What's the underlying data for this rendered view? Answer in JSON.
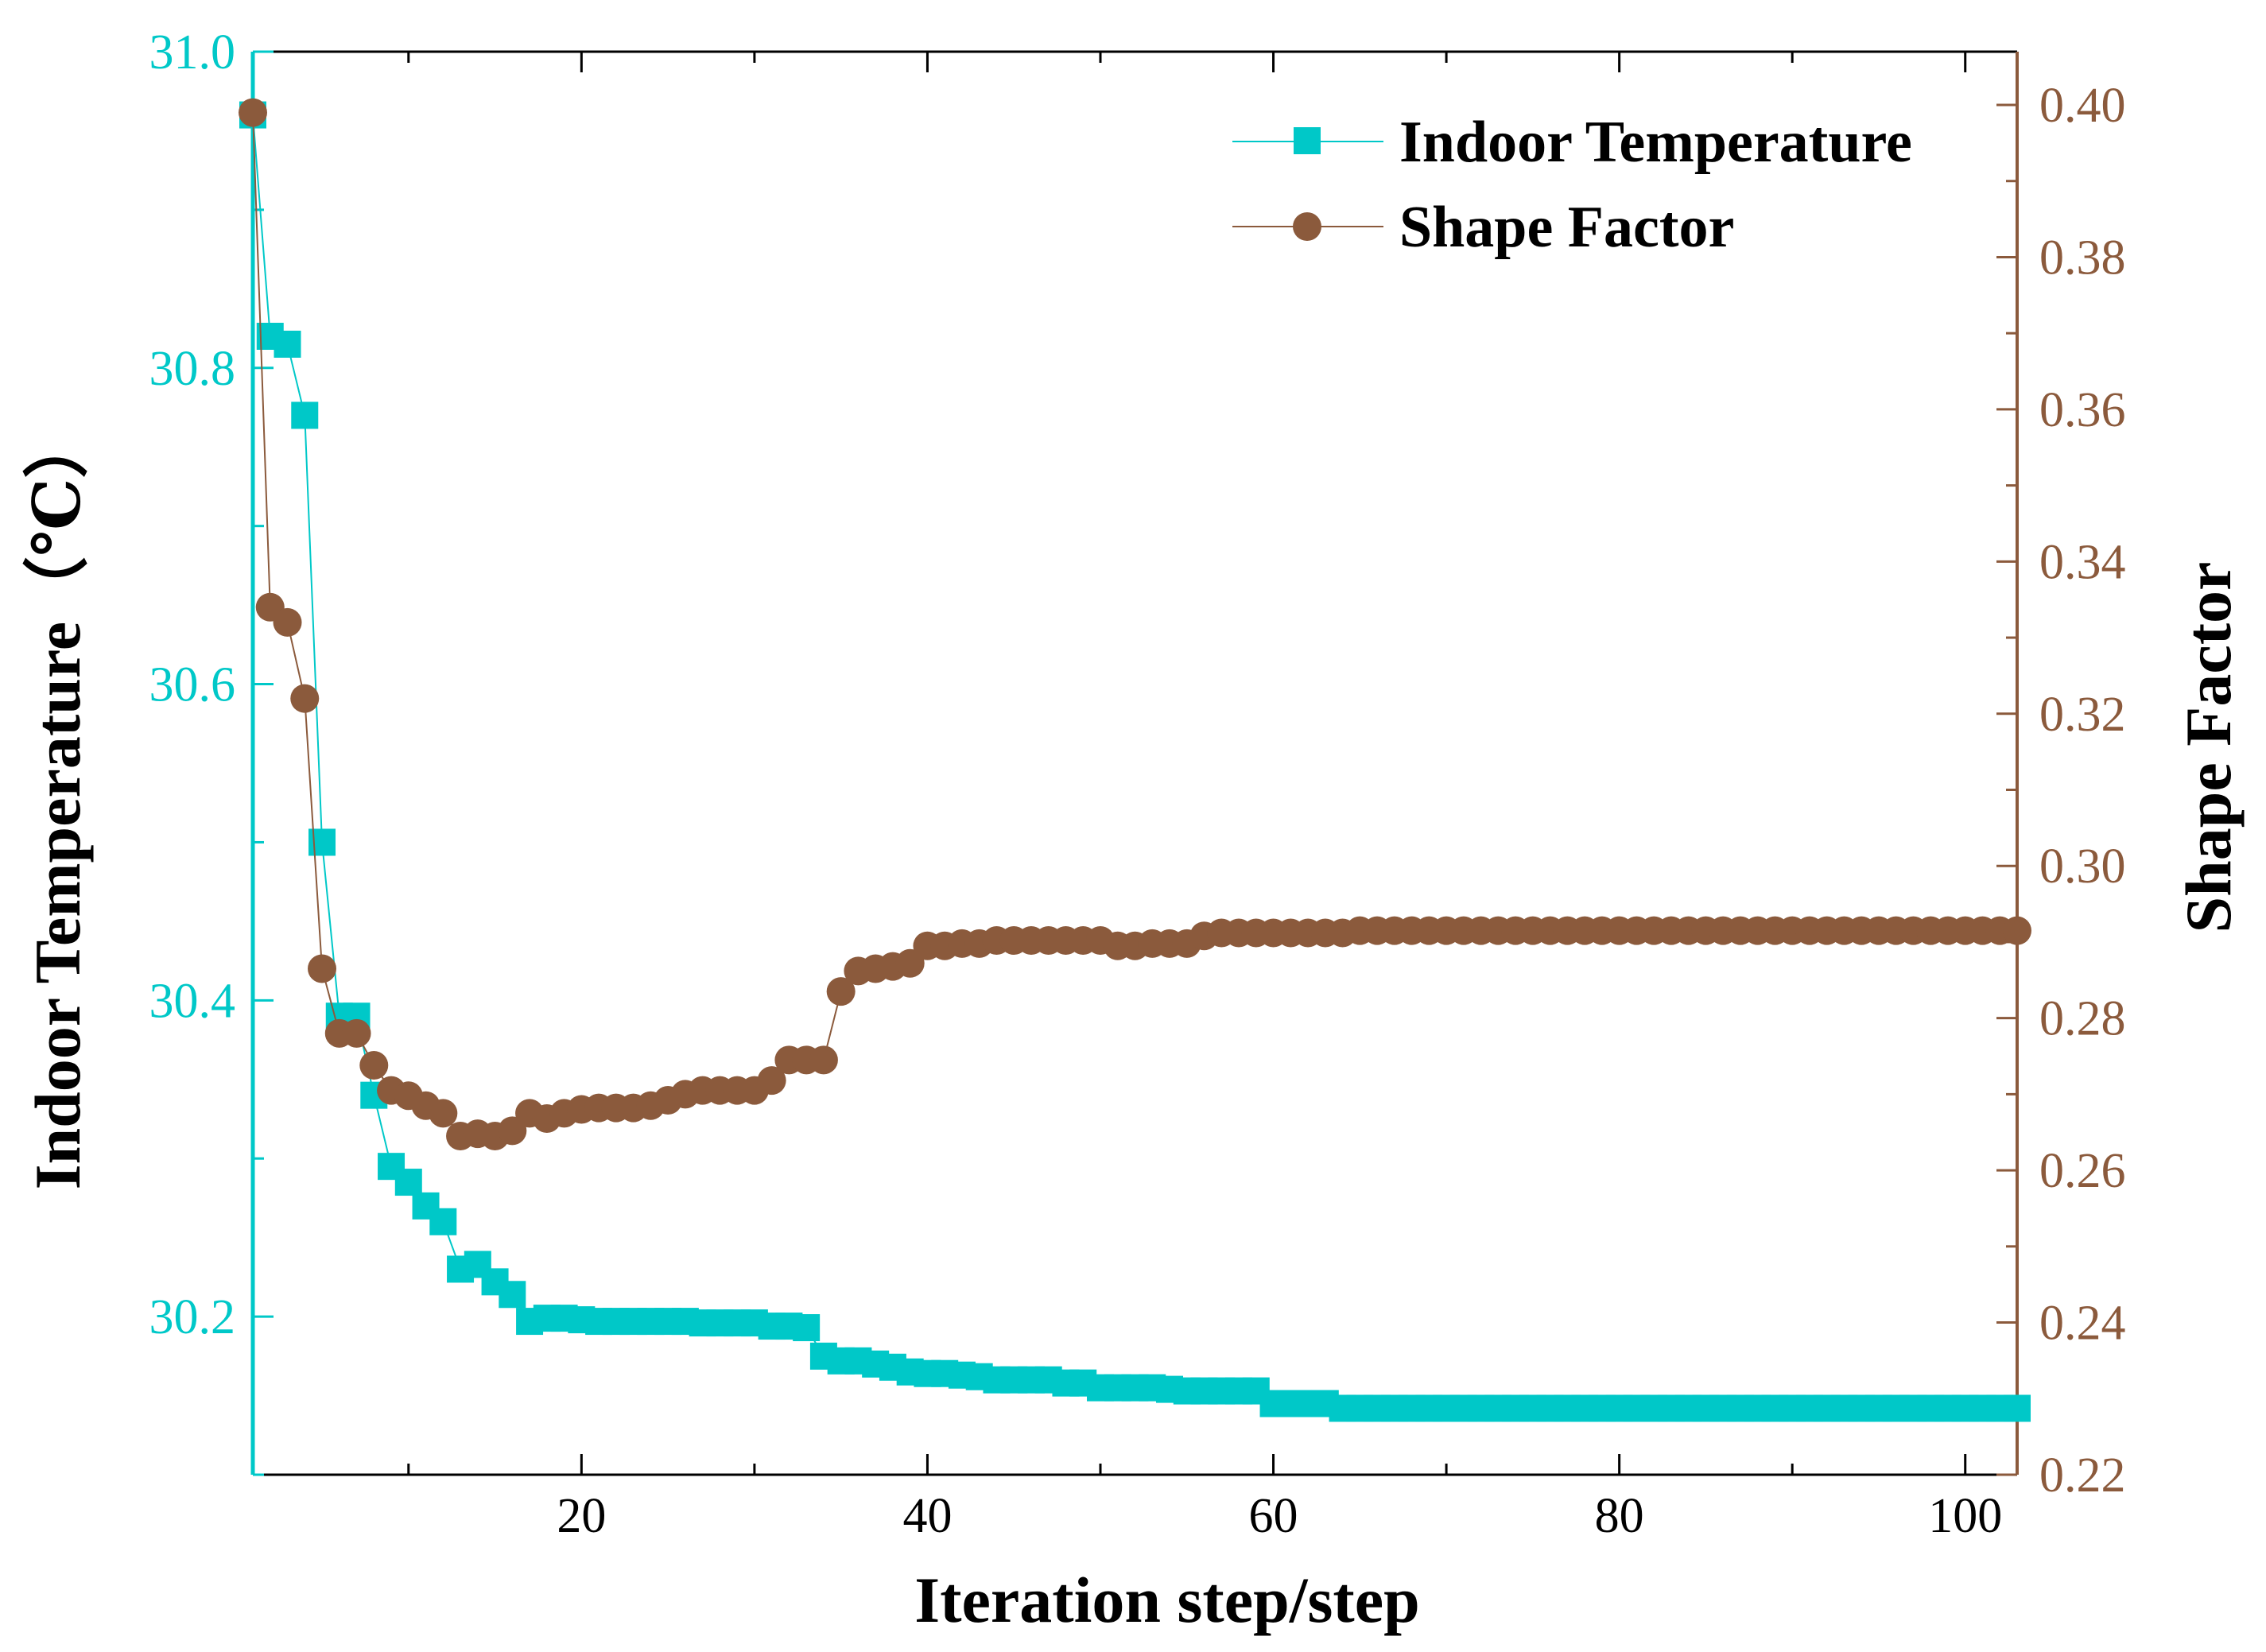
{
  "chart_data": {
    "type": "line",
    "xlabel": "Iteration step/step",
    "ylabel_left": "Indoor Temperature（℃）",
    "ylabel_right": "Shape Factor",
    "xlim": [
      1,
      103
    ],
    "ylim_left": [
      30.1,
      31.0
    ],
    "ylim_right": [
      0.22,
      0.407
    ],
    "xticks": [
      20,
      40,
      60,
      80,
      100
    ],
    "yticks_left": [
      "30.2",
      "30.4",
      "30.6",
      "30.8",
      "31.0"
    ],
    "yticks_right": [
      "0.22",
      "0.24",
      "0.26",
      "0.28",
      "0.30",
      "0.32",
      "0.34",
      "0.36",
      "0.38",
      "0.40"
    ],
    "legend_position": "top-right",
    "colors": {
      "temperature": "#00c8c8",
      "shape_factor": "#8b5a3c",
      "axis": "#000000"
    },
    "x": [
      1,
      2,
      3,
      4,
      5,
      6,
      7,
      8,
      9,
      10,
      11,
      12,
      13,
      14,
      15,
      16,
      17,
      18,
      19,
      20,
      21,
      22,
      23,
      24,
      25,
      26,
      27,
      28,
      29,
      30,
      31,
      32,
      33,
      34,
      35,
      36,
      37,
      38,
      39,
      40,
      41,
      42,
      43,
      44,
      45,
      46,
      47,
      48,
      49,
      50,
      51,
      52,
      53,
      54,
      55,
      56,
      57,
      58,
      59,
      60,
      61,
      62,
      63,
      64,
      65,
      66,
      67,
      68,
      69,
      70,
      71,
      72,
      73,
      74,
      75,
      76,
      77,
      78,
      79,
      80,
      81,
      82,
      83,
      84,
      85,
      86,
      87,
      88,
      89,
      90,
      91,
      92,
      93,
      94,
      95,
      96,
      97,
      98,
      99,
      100,
      101,
      102,
      103
    ],
    "series": [
      {
        "name": "Indoor Temperature",
        "axis": "left",
        "marker": "square",
        "values": [
          30.96,
          30.82,
          30.815,
          30.77,
          30.5,
          30.39,
          30.39,
          30.34,
          30.295,
          30.285,
          30.27,
          30.26,
          30.23,
          30.233,
          30.222,
          30.214,
          30.197,
          30.199,
          30.199,
          30.198,
          30.197,
          30.197,
          30.197,
          30.197,
          30.197,
          30.197,
          30.196,
          30.196,
          30.196,
          30.196,
          30.194,
          30.194,
          30.193,
          30.175,
          30.172,
          30.172,
          30.17,
          30.168,
          30.165,
          30.164,
          30.164,
          30.163,
          30.162,
          30.16,
          30.16,
          30.16,
          30.16,
          30.158,
          30.158,
          30.155,
          30.155,
          30.155,
          30.155,
          30.154,
          30.153,
          30.153,
          30.153,
          30.153,
          30.153,
          30.145,
          30.145,
          30.145,
          30.145,
          30.142,
          30.142,
          30.142,
          30.142,
          30.142,
          30.142,
          30.142,
          30.142,
          30.142,
          30.142,
          30.142,
          30.142,
          30.142,
          30.142,
          30.142,
          30.142,
          30.142,
          30.142,
          30.142,
          30.142,
          30.142,
          30.142,
          30.142,
          30.142,
          30.142,
          30.142,
          30.142,
          30.142,
          30.142,
          30.142,
          30.142,
          30.142,
          30.142,
          30.142,
          30.142,
          30.142,
          30.142,
          30.142,
          30.142,
          30.142
        ]
      },
      {
        "name": "Shape Factor",
        "axis": "right",
        "marker": "circle",
        "values": [
          0.399,
          0.334,
          0.332,
          0.322,
          0.2865,
          0.278,
          0.278,
          0.2738,
          0.2705,
          0.2698,
          0.2685,
          0.2675,
          0.2645,
          0.2648,
          0.2645,
          0.2652,
          0.2675,
          0.2668,
          0.2675,
          0.268,
          0.2682,
          0.2682,
          0.2682,
          0.2685,
          0.2692,
          0.27,
          0.2705,
          0.2705,
          0.2705,
          0.2705,
          0.2718,
          0.2745,
          0.2745,
          0.2745,
          0.2835,
          0.2862,
          0.2865,
          0.2868,
          0.2872,
          0.2895,
          0.2895,
          0.2898,
          0.2898,
          0.2902,
          0.2902,
          0.2902,
          0.2902,
          0.2902,
          0.2902,
          0.2902,
          0.2895,
          0.2895,
          0.2898,
          0.2898,
          0.2898,
          0.2908,
          0.2912,
          0.2912,
          0.2912,
          0.2912,
          0.2912,
          0.2912,
          0.2912,
          0.2912,
          0.2915,
          0.2915,
          0.2915,
          0.2915,
          0.2915,
          0.2915,
          0.2915,
          0.2915,
          0.2915,
          0.2915,
          0.2915,
          0.2915,
          0.2915,
          0.2915,
          0.2915,
          0.2915,
          0.2915,
          0.2915,
          0.2915,
          0.2915,
          0.2915,
          0.2915,
          0.2915,
          0.2915,
          0.2915,
          0.2915,
          0.2915,
          0.2915,
          0.2915,
          0.2915,
          0.2915,
          0.2915,
          0.2915,
          0.2915,
          0.2915,
          0.2915,
          0.2915,
          0.2915,
          0.2915
        ]
      }
    ]
  }
}
